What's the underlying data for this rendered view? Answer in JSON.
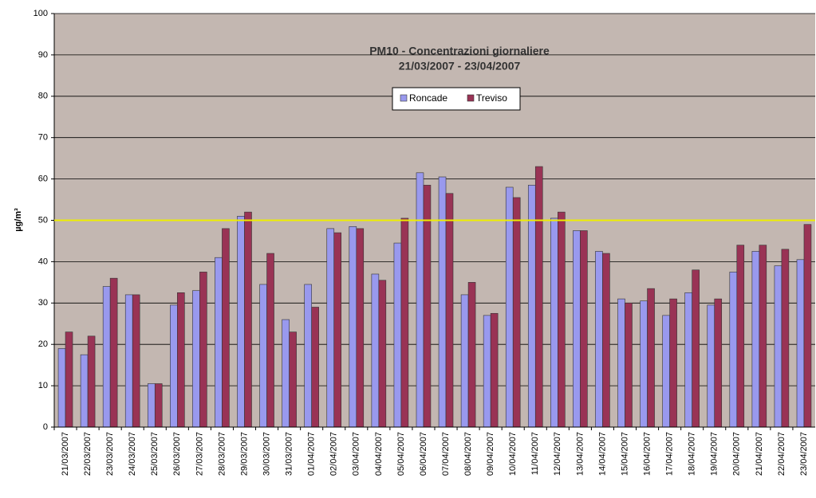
{
  "chart_data": {
    "type": "bar",
    "title": "PM10 - Concentrazioni giornaliere",
    "subtitle": "21/03/2007 - 23/04/2007",
    "y_label": "µg/m³",
    "categories": [
      "21/03/2007",
      "22/03/2007",
      "23/03/2007",
      "24/03/2007",
      "25/03/2007",
      "26/03/2007",
      "27/03/2007",
      "28/03/2007",
      "29/03/2007",
      "30/03/2007",
      "31/03/2007",
      "01/04/2007",
      "02/04/2007",
      "03/04/2007",
      "04/04/2007",
      "05/04/2007",
      "06/04/2007",
      "07/04/2007",
      "08/04/2007",
      "09/04/2007",
      "10/04/2007",
      "11/04/2007",
      "12/04/2007",
      "13/04/2007",
      "14/04/2007",
      "15/04/2007",
      "16/04/2007",
      "17/04/2007",
      "18/04/2007",
      "19/04/2007",
      "20/04/2007",
      "21/04/2007",
      "22/04/2007",
      "23/04/2007"
    ],
    "series": [
      {
        "name": "Roncade",
        "color": "#9999ee",
        "values": [
          19,
          17.5,
          34,
          32,
          10.5,
          29.5,
          33,
          41,
          51,
          34.5,
          26,
          34.5,
          48,
          48.5,
          37,
          44.5,
          61.5,
          60.5,
          32,
          27,
          58,
          58.5,
          50.5,
          47.5,
          42.5,
          31,
          30.5,
          27,
          32.5,
          29.5,
          37.5,
          42.5,
          39,
          40.5
        ]
      },
      {
        "name": "Treviso",
        "color": "#993355",
        "values": [
          23,
          22,
          36,
          32,
          10.5,
          32.5,
          37.5,
          48,
          52,
          42,
          23,
          29,
          47,
          48,
          35.5,
          50.5,
          58.5,
          56.5,
          35,
          27.5,
          55.5,
          63,
          52,
          47.5,
          42,
          30,
          33.5,
          31,
          38,
          31,
          44,
          44,
          43,
          49
        ]
      }
    ],
    "threshold": 50,
    "threshold_color": "#eeee00",
    "ylim": [
      0,
      100
    ],
    "yticks": [
      0,
      10,
      20,
      30,
      40,
      50,
      60,
      70,
      80,
      90,
      100
    ],
    "grid": true,
    "plot_background": "#c3b7b1",
    "legend": "top"
  }
}
